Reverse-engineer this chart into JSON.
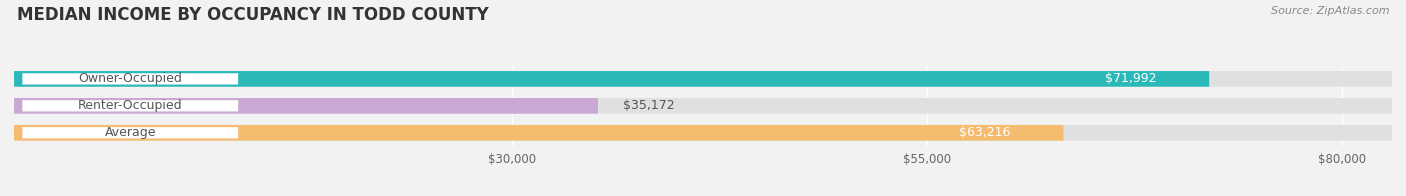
{
  "title": "MEDIAN INCOME BY OCCUPANCY IN TODD COUNTY",
  "source": "Source: ZipAtlas.com",
  "categories": [
    "Owner-Occupied",
    "Renter-Occupied",
    "Average"
  ],
  "values": [
    71992,
    35172,
    63216
  ],
  "bar_colors": [
    "#2ab8b8",
    "#c9a8d4",
    "#f5bb6e"
  ],
  "value_labels": [
    "$71,992",
    "$35,172",
    "$63,216"
  ],
  "xlim_min": 0,
  "xlim_max": 83000,
  "xticks": [
    30000,
    55000,
    80000
  ],
  "xtick_labels": [
    "$30,000",
    "$55,000",
    "$80,000"
  ],
  "bar_height": 0.58,
  "background_color": "#f2f2f2",
  "bar_bg_color": "#e0e0e0",
  "title_fontsize": 12,
  "source_fontsize": 8,
  "label_fontsize": 9,
  "value_fontsize": 9,
  "axis_fontsize": 8.5,
  "grid_color": "#ffffff",
  "label_text_color": "#555555",
  "value_inside_color": "#ffffff",
  "value_outside_color": "#555555"
}
